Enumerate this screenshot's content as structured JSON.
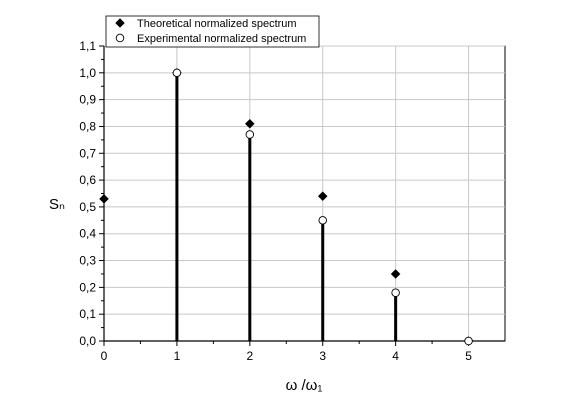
{
  "chart_data": {
    "type": "scatter",
    "xlabel": "ω /ω₁",
    "ylabel": "Sₙ",
    "xlim": [
      0,
      5.5
    ],
    "ylim": [
      0,
      1.1
    ],
    "x_ticks": [
      "0",
      "1",
      "2",
      "3",
      "4",
      "5"
    ],
    "y_ticks": [
      "0,0",
      "0,1",
      "0,2",
      "0,3",
      "0,4",
      "0,5",
      "0,6",
      "0,7",
      "0,8",
      "0,9",
      "1,0",
      "1,1"
    ],
    "grid": true,
    "legend_position": "top-left",
    "series": [
      {
        "name": "Theoretical normalized spectrum",
        "marker": "filled-diamond",
        "color": "#000000",
        "x": [
          0,
          1,
          2,
          3,
          4,
          5
        ],
        "y": [
          0.53,
          1.0,
          0.81,
          0.54,
          0.25,
          0.0
        ]
      },
      {
        "name": "Experimental normalized spectrum",
        "marker": "open-circle",
        "color": "#000000",
        "x": [
          1,
          2,
          3,
          4,
          5
        ],
        "y": [
          1.0,
          0.77,
          0.45,
          0.18,
          0.0
        ]
      }
    ],
    "stems": {
      "x": [
        1,
        2,
        3,
        4
      ],
      "y": [
        1.0,
        0.77,
        0.45,
        0.18
      ]
    }
  }
}
